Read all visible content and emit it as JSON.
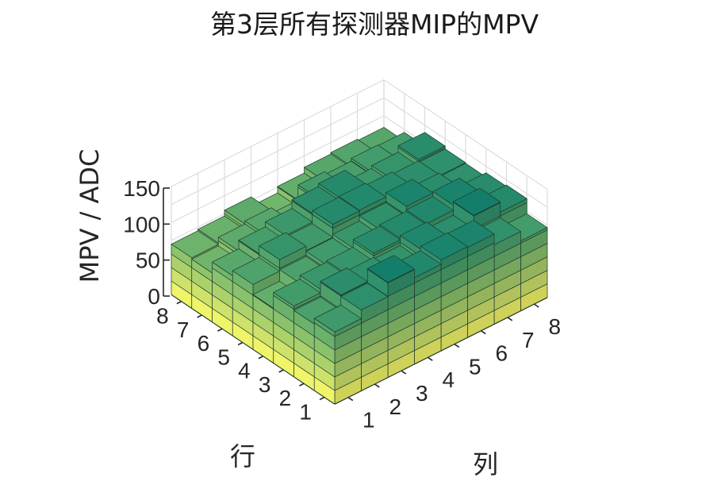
{
  "chart_data": {
    "type": "bar3",
    "title": "第3层所有探测器MIP的MPV",
    "xlabel": "行",
    "ylabel": "列",
    "zlabel": "MPV / ADC",
    "rows": [
      "1",
      "2",
      "3",
      "4",
      "5",
      "6",
      "7",
      "8"
    ],
    "cols": [
      "1",
      "2",
      "3",
      "4",
      "5",
      "6",
      "7",
      "8"
    ],
    "zticks": [
      "0",
      "50",
      "100",
      "150"
    ],
    "zlim": [
      0,
      150
    ],
    "values": [
      [
        100,
        112,
        132,
        120,
        126,
        125,
        110,
        97
      ],
      [
        92,
        114,
        110,
        108,
        122,
        113,
        132,
        118
      ],
      [
        98,
        103,
        105,
        116,
        118,
        120,
        127,
        116
      ],
      [
        76,
        92,
        99,
        104,
        111,
        125,
        115,
        110
      ],
      [
        90,
        106,
        100,
        118,
        119,
        116,
        113,
        111
      ],
      [
        83,
        95,
        102,
        114,
        118,
        102,
        106,
        115
      ],
      [
        68,
        80,
        84,
        76,
        97,
        93,
        97,
        96
      ],
      [
        70,
        72,
        80,
        67,
        76,
        84,
        86,
        84
      ]
    ],
    "colormap": [
      "#ffff66",
      "#dfe96a",
      "#bcd96b",
      "#9ac96b",
      "#79b96b",
      "#5aa96b",
      "#3e996b",
      "#23896c",
      "#0b7a6b"
    ],
    "grid": true
  }
}
